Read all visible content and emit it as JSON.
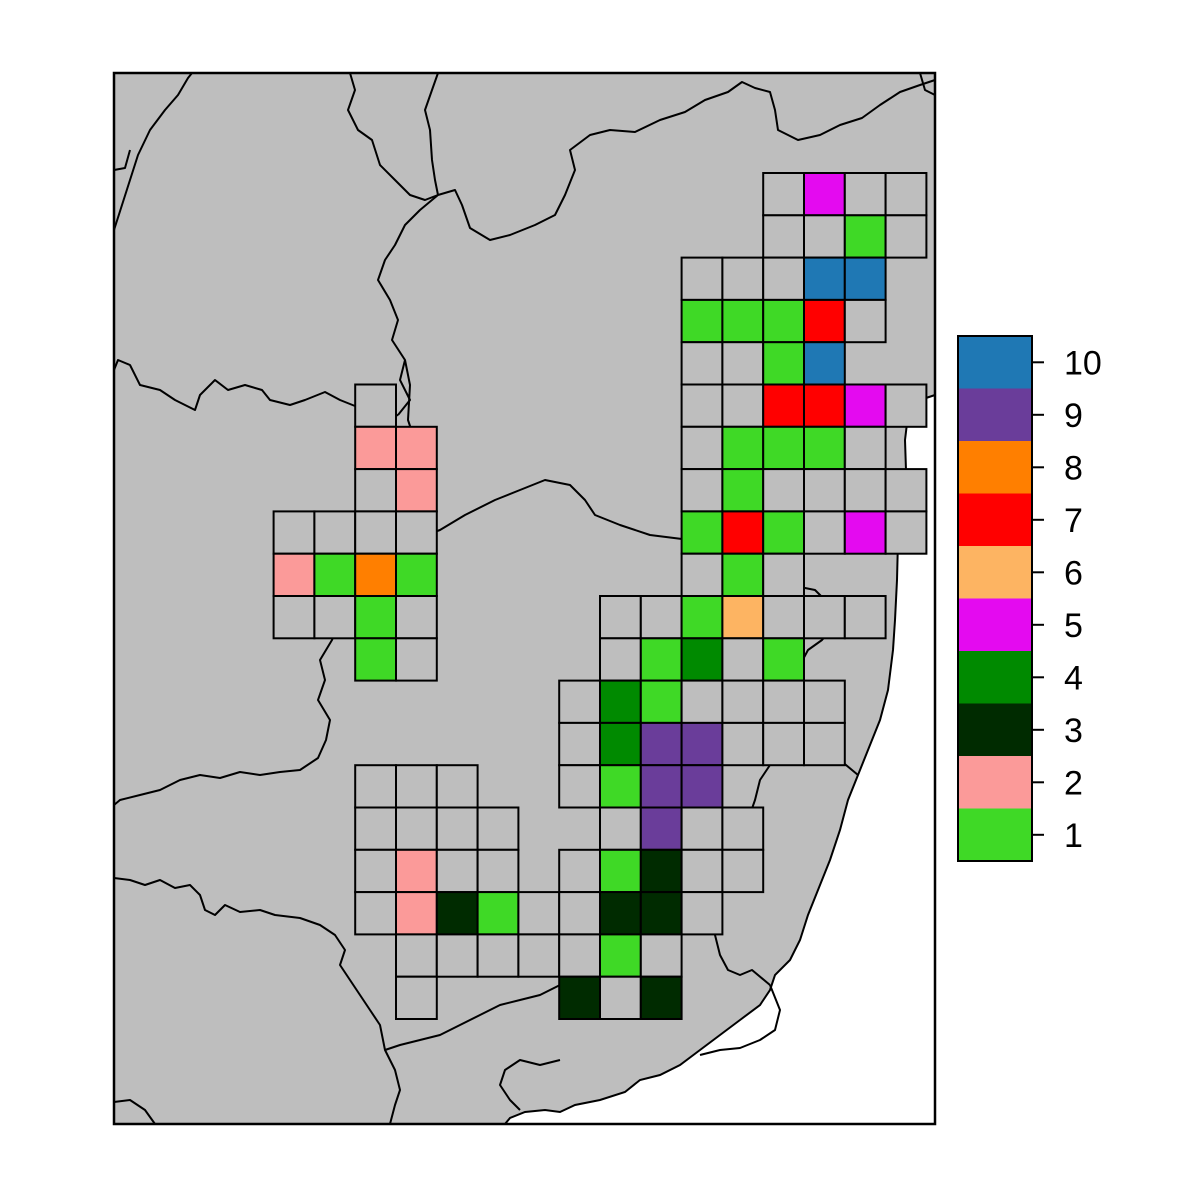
{
  "legend": {
    "entries": [
      {
        "label": "10",
        "value": 10,
        "color": "#1F78B4"
      },
      {
        "label": "9",
        "value": 9,
        "color": "#6A3D9A"
      },
      {
        "label": "8",
        "value": 8,
        "color": "#FF7F00"
      },
      {
        "label": "7",
        "value": 7,
        "color": "#FF0000"
      },
      {
        "label": "6",
        "value": 6,
        "color": "#FDB462"
      },
      {
        "label": "5",
        "value": 5,
        "color": "#E40AF0"
      },
      {
        "label": "4",
        "value": 4,
        "color": "#008A00"
      },
      {
        "label": "3",
        "value": 3,
        "color": "#002B00"
      },
      {
        "label": "2",
        "value": 2,
        "color": "#FB9A99"
      },
      {
        "label": "1",
        "value": 1,
        "color": "#3FD926"
      }
    ]
  },
  "colors": {
    "land": "#BEBEBE",
    "cell_empty": "#BEBEBE",
    "border": "#000000"
  },
  "grid": {
    "cells": [
      {
        "row": 0,
        "col": 14,
        "value": 0
      },
      {
        "row": 0,
        "col": 15,
        "value": 5
      },
      {
        "row": 0,
        "col": 16,
        "value": 0
      },
      {
        "row": 0,
        "col": 17,
        "value": 0
      },
      {
        "row": 1,
        "col": 14,
        "value": 0
      },
      {
        "row": 1,
        "col": 15,
        "value": 0
      },
      {
        "row": 1,
        "col": 16,
        "value": 1
      },
      {
        "row": 1,
        "col": 17,
        "value": 0
      },
      {
        "row": 2,
        "col": 12,
        "value": 0
      },
      {
        "row": 2,
        "col": 13,
        "value": 0
      },
      {
        "row": 2,
        "col": 14,
        "value": 0
      },
      {
        "row": 2,
        "col": 15,
        "value": 10
      },
      {
        "row": 2,
        "col": 16,
        "value": 10
      },
      {
        "row": 3,
        "col": 12,
        "value": 1
      },
      {
        "row": 3,
        "col": 13,
        "value": 1
      },
      {
        "row": 3,
        "col": 14,
        "value": 1
      },
      {
        "row": 3,
        "col": 15,
        "value": 7
      },
      {
        "row": 3,
        "col": 16,
        "value": 0
      },
      {
        "row": 4,
        "col": 12,
        "value": 0
      },
      {
        "row": 4,
        "col": 13,
        "value": 0
      },
      {
        "row": 4,
        "col": 14,
        "value": 1
      },
      {
        "row": 4,
        "col": 15,
        "value": 10
      },
      {
        "row": 5,
        "col": 4,
        "value": 0
      },
      {
        "row": 5,
        "col": 12,
        "value": 0
      },
      {
        "row": 5,
        "col": 13,
        "value": 0
      },
      {
        "row": 5,
        "col": 14,
        "value": 7
      },
      {
        "row": 5,
        "col": 15,
        "value": 7
      },
      {
        "row": 5,
        "col": 16,
        "value": 5
      },
      {
        "row": 5,
        "col": 17,
        "value": 0
      },
      {
        "row": 6,
        "col": 4,
        "value": 2
      },
      {
        "row": 6,
        "col": 5,
        "value": 2
      },
      {
        "row": 6,
        "col": 12,
        "value": 0
      },
      {
        "row": 6,
        "col": 13,
        "value": 1
      },
      {
        "row": 6,
        "col": 14,
        "value": 1
      },
      {
        "row": 6,
        "col": 15,
        "value": 1
      },
      {
        "row": 6,
        "col": 16,
        "value": 0
      },
      {
        "row": 7,
        "col": 4,
        "value": 0
      },
      {
        "row": 7,
        "col": 5,
        "value": 2
      },
      {
        "row": 7,
        "col": 12,
        "value": 0
      },
      {
        "row": 7,
        "col": 13,
        "value": 1
      },
      {
        "row": 7,
        "col": 14,
        "value": 0
      },
      {
        "row": 7,
        "col": 15,
        "value": 0
      },
      {
        "row": 7,
        "col": 16,
        "value": 0
      },
      {
        "row": 7,
        "col": 17,
        "value": 0
      },
      {
        "row": 8,
        "col": 2,
        "value": 0
      },
      {
        "row": 8,
        "col": 3,
        "value": 0
      },
      {
        "row": 8,
        "col": 4,
        "value": 0
      },
      {
        "row": 8,
        "col": 5,
        "value": 0
      },
      {
        "row": 8,
        "col": 12,
        "value": 1
      },
      {
        "row": 8,
        "col": 13,
        "value": 7
      },
      {
        "row": 8,
        "col": 14,
        "value": 1
      },
      {
        "row": 8,
        "col": 15,
        "value": 0
      },
      {
        "row": 8,
        "col": 16,
        "value": 5
      },
      {
        "row": 8,
        "col": 17,
        "value": 0
      },
      {
        "row": 9,
        "col": 2,
        "value": 2
      },
      {
        "row": 9,
        "col": 3,
        "value": 1
      },
      {
        "row": 9,
        "col": 4,
        "value": 8
      },
      {
        "row": 9,
        "col": 5,
        "value": 1
      },
      {
        "row": 9,
        "col": 12,
        "value": 0
      },
      {
        "row": 9,
        "col": 13,
        "value": 1
      },
      {
        "row": 9,
        "col": 14,
        "value": 0
      },
      {
        "row": 10,
        "col": 2,
        "value": 0
      },
      {
        "row": 10,
        "col": 3,
        "value": 0
      },
      {
        "row": 10,
        "col": 4,
        "value": 1
      },
      {
        "row": 10,
        "col": 5,
        "value": 0
      },
      {
        "row": 10,
        "col": 10,
        "value": 0
      },
      {
        "row": 10,
        "col": 11,
        "value": 0
      },
      {
        "row": 10,
        "col": 12,
        "value": 1
      },
      {
        "row": 10,
        "col": 13,
        "value": 6
      },
      {
        "row": 10,
        "col": 14,
        "value": 0
      },
      {
        "row": 10,
        "col": 15,
        "value": 0
      },
      {
        "row": 10,
        "col": 16,
        "value": 0
      },
      {
        "row": 11,
        "col": 4,
        "value": 1
      },
      {
        "row": 11,
        "col": 5,
        "value": 0
      },
      {
        "row": 11,
        "col": 10,
        "value": 0
      },
      {
        "row": 11,
        "col": 11,
        "value": 1
      },
      {
        "row": 11,
        "col": 12,
        "value": 4
      },
      {
        "row": 11,
        "col": 13,
        "value": 0
      },
      {
        "row": 11,
        "col": 14,
        "value": 1
      },
      {
        "row": 12,
        "col": 9,
        "value": 0
      },
      {
        "row": 12,
        "col": 10,
        "value": 4
      },
      {
        "row": 12,
        "col": 11,
        "value": 1
      },
      {
        "row": 12,
        "col": 12,
        "value": 0
      },
      {
        "row": 12,
        "col": 13,
        "value": 0
      },
      {
        "row": 12,
        "col": 14,
        "value": 0
      },
      {
        "row": 12,
        "col": 15,
        "value": 0
      },
      {
        "row": 13,
        "col": 9,
        "value": 0
      },
      {
        "row": 13,
        "col": 10,
        "value": 4
      },
      {
        "row": 13,
        "col": 11,
        "value": 9
      },
      {
        "row": 13,
        "col": 12,
        "value": 9
      },
      {
        "row": 13,
        "col": 13,
        "value": 0
      },
      {
        "row": 13,
        "col": 14,
        "value": 0
      },
      {
        "row": 13,
        "col": 15,
        "value": 0
      },
      {
        "row": 14,
        "col": 4,
        "value": 0
      },
      {
        "row": 14,
        "col": 5,
        "value": 0
      },
      {
        "row": 14,
        "col": 6,
        "value": 0
      },
      {
        "row": 14,
        "col": 9,
        "value": 0
      },
      {
        "row": 14,
        "col": 10,
        "value": 1
      },
      {
        "row": 14,
        "col": 11,
        "value": 9
      },
      {
        "row": 14,
        "col": 12,
        "value": 9
      },
      {
        "row": 15,
        "col": 4,
        "value": 0
      },
      {
        "row": 15,
        "col": 5,
        "value": 0
      },
      {
        "row": 15,
        "col": 6,
        "value": 0
      },
      {
        "row": 15,
        "col": 7,
        "value": 0
      },
      {
        "row": 15,
        "col": 10,
        "value": 0
      },
      {
        "row": 15,
        "col": 11,
        "value": 9
      },
      {
        "row": 15,
        "col": 12,
        "value": 0
      },
      {
        "row": 15,
        "col": 13,
        "value": 0
      },
      {
        "row": 16,
        "col": 4,
        "value": 0
      },
      {
        "row": 16,
        "col": 5,
        "value": 2
      },
      {
        "row": 16,
        "col": 6,
        "value": 0
      },
      {
        "row": 16,
        "col": 7,
        "value": 0
      },
      {
        "row": 16,
        "col": 9,
        "value": 0
      },
      {
        "row": 16,
        "col": 10,
        "value": 1
      },
      {
        "row": 16,
        "col": 11,
        "value": 3
      },
      {
        "row": 16,
        "col": 12,
        "value": 0
      },
      {
        "row": 16,
        "col": 13,
        "value": 0
      },
      {
        "row": 17,
        "col": 4,
        "value": 0
      },
      {
        "row": 17,
        "col": 5,
        "value": 2
      },
      {
        "row": 17,
        "col": 6,
        "value": 3
      },
      {
        "row": 17,
        "col": 7,
        "value": 1
      },
      {
        "row": 17,
        "col": 8,
        "value": 0
      },
      {
        "row": 17,
        "col": 9,
        "value": 0
      },
      {
        "row": 17,
        "col": 10,
        "value": 3
      },
      {
        "row": 17,
        "col": 11,
        "value": 3
      },
      {
        "row": 17,
        "col": 12,
        "value": 0
      },
      {
        "row": 18,
        "col": 5,
        "value": 0
      },
      {
        "row": 18,
        "col": 6,
        "value": 0
      },
      {
        "row": 18,
        "col": 7,
        "value": 0
      },
      {
        "row": 18,
        "col": 8,
        "value": 0
      },
      {
        "row": 18,
        "col": 9,
        "value": 0
      },
      {
        "row": 18,
        "col": 10,
        "value": 1
      },
      {
        "row": 18,
        "col": 11,
        "value": 0
      },
      {
        "row": 19,
        "col": 5,
        "value": 0
      },
      {
        "row": 19,
        "col": 9,
        "value": 3
      },
      {
        "row": 19,
        "col": 10,
        "value": 0
      },
      {
        "row": 19,
        "col": 11,
        "value": 3
      }
    ]
  }
}
